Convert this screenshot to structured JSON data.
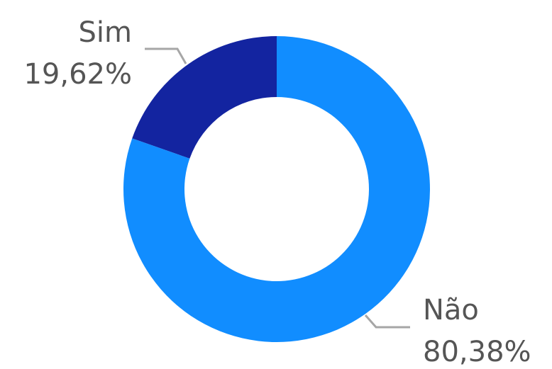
{
  "chart_data": {
    "type": "pie",
    "donut": true,
    "title": "",
    "categories": [
      "Sim",
      "Não"
    ],
    "values": [
      19.62,
      80.38
    ],
    "value_labels": [
      "19,62%",
      "80,38%"
    ],
    "colors": [
      "#1324A0",
      "#118DFF"
    ],
    "legend": "none"
  }
}
